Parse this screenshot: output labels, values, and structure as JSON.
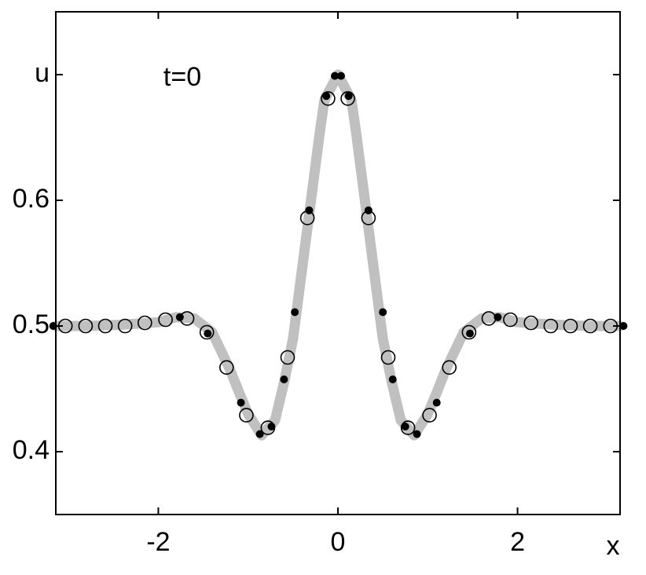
{
  "chart_data": {
    "type": "line",
    "annotation": "t=0",
    "xlabel": "x",
    "xlim": [
      -3.1416,
      3.1416
    ],
    "ylim": [
      0.35,
      0.75
    ],
    "xticks": [
      -2,
      0,
      2
    ],
    "yticks": [
      0.4,
      0.5,
      0.6,
      {
        "value": 0.7,
        "label": "u"
      }
    ],
    "curve": {
      "color": "#c0c0c0",
      "x": [
        -3.14,
        -2.8,
        -2.4,
        -2.0,
        -1.8,
        -1.6,
        -1.4,
        -1.2,
        -1.1,
        -1.0,
        -0.85,
        -0.7,
        -0.6,
        -0.5,
        -0.4,
        -0.3,
        -0.2,
        -0.15,
        0,
        0.15,
        0.2,
        0.3,
        0.4,
        0.5,
        0.6,
        0.7,
        0.85,
        1.0,
        1.1,
        1.2,
        1.4,
        1.6,
        1.8,
        2.0,
        2.4,
        2.8,
        3.14
      ],
      "values": [
        0.5,
        0.5,
        0.501,
        0.503,
        0.507,
        0.506,
        0.495,
        0.465,
        0.447,
        0.43,
        0.413,
        0.425,
        0.455,
        0.49,
        0.545,
        0.6,
        0.655,
        0.68,
        0.7,
        0.68,
        0.655,
        0.6,
        0.545,
        0.49,
        0.455,
        0.425,
        0.413,
        0.43,
        0.447,
        0.465,
        0.495,
        0.506,
        0.507,
        0.503,
        0.501,
        0.5,
        0.5
      ]
    },
    "circles": {
      "color": "#000000",
      "x": [
        -3.035,
        -2.81,
        -2.59,
        -2.37,
        -2.15,
        -1.92,
        -1.68,
        -1.46,
        -1.24,
        -1.02,
        -0.78,
        -0.56,
        -0.34,
        -0.11,
        0.11,
        0.34,
        0.56,
        0.78,
        1.02,
        1.24,
        1.46,
        1.68,
        1.92,
        2.15,
        2.37,
        2.59,
        2.81,
        3.035
      ],
      "values": [
        0.5,
        0.5,
        0.5,
        0.5,
        0.5025,
        0.505,
        0.506,
        0.495,
        0.467,
        0.429,
        0.419,
        0.475,
        0.586,
        0.681,
        0.681,
        0.586,
        0.475,
        0.419,
        0.429,
        0.467,
        0.495,
        0.506,
        0.505,
        0.5025,
        0.5,
        0.5,
        0.5,
        0.5
      ]
    },
    "dots": {
      "color": "#000000",
      "x": [
        -3.17,
        -1.76,
        -1.45,
        -1.08,
        -0.87,
        -0.74,
        -0.6,
        -0.48,
        -0.32,
        -0.13,
        -0.035,
        0.035,
        0.12,
        0.34,
        0.5,
        0.61,
        0.75,
        0.88,
        1.1,
        1.47,
        1.78,
        3.18
      ],
      "values": [
        0.5,
        0.507,
        0.494,
        0.439,
        0.414,
        0.42,
        0.4575,
        0.511,
        0.592,
        0.683,
        0.699,
        0.699,
        0.683,
        0.592,
        0.511,
        0.4575,
        0.42,
        0.414,
        0.439,
        0.494,
        0.507,
        0.5
      ]
    }
  }
}
